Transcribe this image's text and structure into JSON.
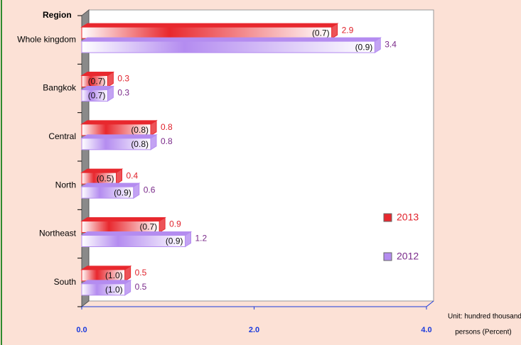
{
  "chart_data": {
    "type": "bar3d_horizontal",
    "y_axis_label": "Region",
    "unit_label": [
      "Unit: hundred thousand",
      "persons (Percent)"
    ],
    "categories": [
      "Whole kingdom",
      "Bangkok",
      "Central",
      "North",
      "Northeast",
      "South"
    ],
    "series": [
      {
        "name": "2013",
        "color": "#e8282e",
        "text_color": "#e0202a",
        "values": [
          2.9,
          0.3,
          0.8,
          0.4,
          0.9,
          0.5
        ],
        "percent_labels": [
          "(0.7)",
          "(0.7)",
          "(0.8)",
          "(0.5)",
          "(0.7)",
          "(1.0)"
        ]
      },
      {
        "name": "2012",
        "color": "#b48cf0",
        "text_color": "#7a2a8a",
        "values": [
          3.4,
          0.3,
          0.8,
          0.6,
          1.2,
          0.5
        ],
        "percent_labels": [
          "(0.9)",
          "(0.7)",
          "(0.8)",
          "(0.9)",
          "(0.9)",
          "(1.0)"
        ]
      }
    ],
    "xlim": [
      0,
      4
    ],
    "xticks": [
      {
        "value": 0,
        "label": "0.0"
      },
      {
        "value": 2,
        "label": "2.0"
      },
      {
        "value": 4,
        "label": "4.0"
      }
    ],
    "axis_color": "#1a3adc"
  }
}
